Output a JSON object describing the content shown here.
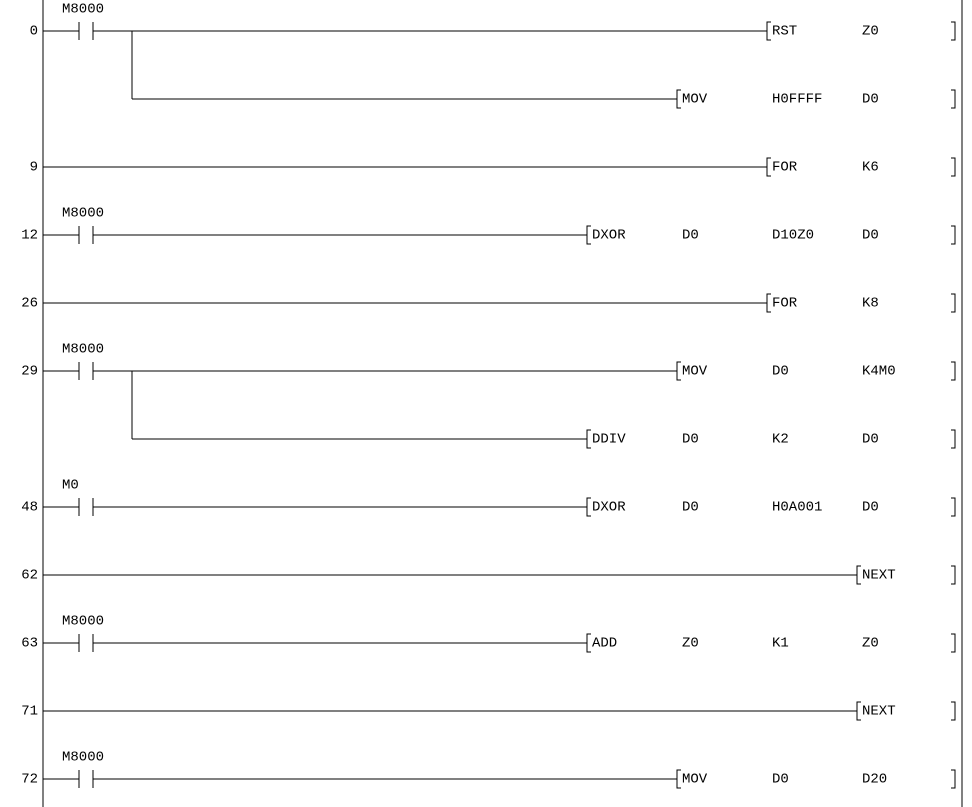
{
  "rungs": [
    {
      "step": "0",
      "contact": "M8000",
      "instructions": [
        [
          "RST",
          "Z0"
        ],
        [
          "MOV",
          "H0FFFF",
          "D0"
        ]
      ]
    },
    {
      "step": "9",
      "instructions": [
        [
          "FOR",
          "K6"
        ]
      ]
    },
    {
      "step": "12",
      "contact": "M8000",
      "instructions": [
        [
          "DXOR",
          "D0",
          "D10Z0",
          "D0"
        ]
      ]
    },
    {
      "step": "26",
      "instructions": [
        [
          "FOR",
          "K8"
        ]
      ]
    },
    {
      "step": "29",
      "contact": "M8000",
      "instructions": [
        [
          "MOV",
          "D0",
          "K4M0"
        ],
        [
          "DDIV",
          "D0",
          "K2",
          "D0"
        ]
      ]
    },
    {
      "step": "48",
      "contact": "M0",
      "instructions": [
        [
          "DXOR",
          "D0",
          "H0A001",
          "D0"
        ]
      ]
    },
    {
      "step": "62",
      "instructions": [
        [
          "NEXT"
        ]
      ]
    },
    {
      "step": "63",
      "contact": "M8000",
      "instructions": [
        [
          "ADD",
          "Z0",
          "K1",
          "Z0"
        ]
      ]
    },
    {
      "step": "71",
      "instructions": [
        [
          "NEXT"
        ]
      ]
    },
    {
      "step": "72",
      "contact": "M8000",
      "instructions": [
        [
          "MOV",
          "D0",
          "D20"
        ]
      ]
    }
  ]
}
